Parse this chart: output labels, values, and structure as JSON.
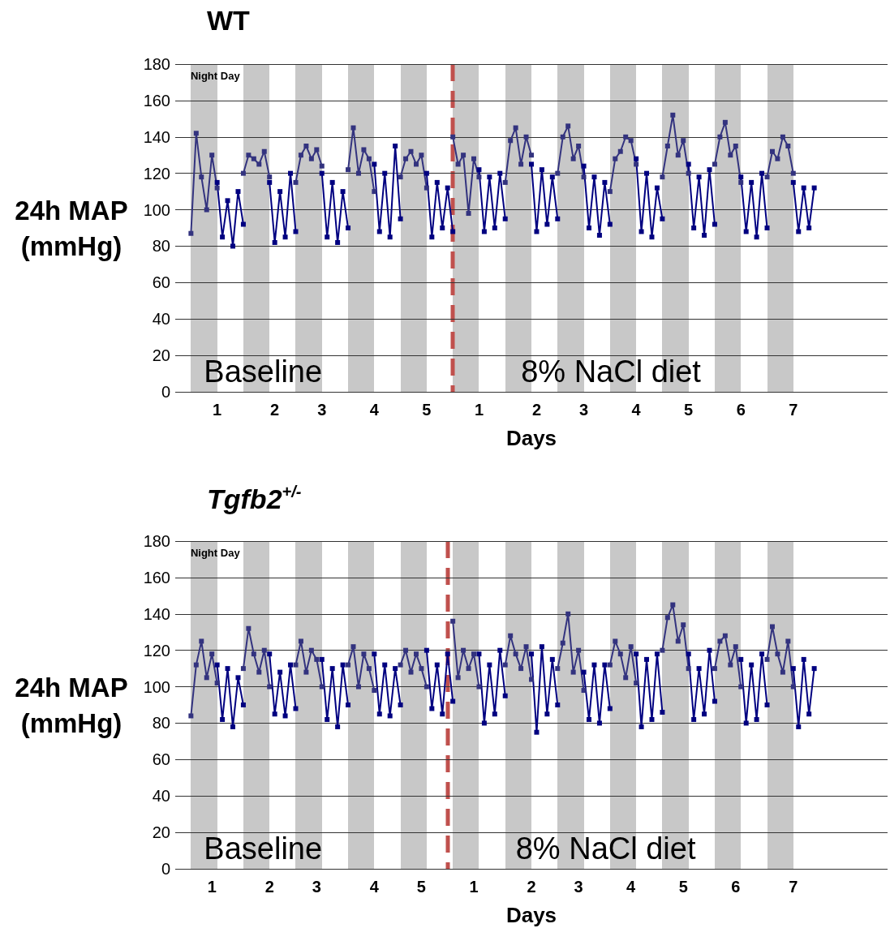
{
  "chart_data": [
    {
      "type": "line",
      "title": "WT",
      "xlabel": "Days",
      "ylabel": "24h MAP\n(mmHg)",
      "categories": [
        null,
        null,
        null,
        null,
        null,
        null,
        null,
        null,
        "1",
        null,
        null,
        null,
        null,
        null,
        null,
        null,
        null,
        null,
        null,
        "2",
        null,
        null,
        null,
        null,
        null,
        null,
        null,
        null,
        "3",
        null,
        null,
        null,
        null,
        null,
        null,
        null,
        null,
        null,
        "4",
        null,
        null,
        null,
        null,
        null,
        null,
        null,
        null,
        null,
        "5",
        null,
        null,
        null,
        null,
        null,
        null,
        null,
        null,
        null,
        "1",
        null,
        null,
        null,
        null,
        null,
        null,
        null,
        null,
        null,
        null,
        "2",
        null,
        null,
        null,
        null,
        null,
        null,
        null,
        null,
        "3",
        null,
        null,
        null,
        null,
        null,
        null,
        null,
        null,
        null,
        "4",
        null,
        null,
        null,
        null,
        null,
        null,
        null,
        null,
        null,
        "5",
        null,
        null,
        null,
        null,
        null,
        null,
        null,
        null,
        null,
        "6",
        null,
        null,
        null,
        null,
        null,
        null,
        null,
        null,
        null,
        "7",
        null,
        null,
        null,
        null,
        null,
        null,
        null,
        null,
        null,
        null,
        null,
        null,
        null,
        null,
        null,
        null,
        null,
        null
      ],
      "ylim": [
        0,
        180
      ],
      "yticks": [
        0,
        20,
        40,
        60,
        80,
        100,
        120,
        140,
        160,
        180
      ],
      "grid": "y",
      "marker": "square",
      "line_style": "solid",
      "series": [
        {
          "color": "#33337f",
          "values": [
            null,
            null,
            null,
            87,
            142,
            118,
            100,
            130,
            112,
            null,
            null,
            null,
            null,
            120,
            130,
            128,
            125,
            132,
            118,
            null,
            null,
            null,
            null,
            115,
            130,
            135,
            128,
            133,
            124,
            null,
            null,
            null,
            null,
            122,
            145,
            120,
            133,
            128,
            110,
            null,
            null,
            null,
            null,
            118,
            128,
            132,
            125,
            130,
            112,
            null,
            null,
            null,
            null,
            140,
            125,
            130,
            98,
            128,
            118,
            null,
            null,
            null,
            null,
            115,
            138,
            145,
            125,
            140,
            130,
            null,
            null,
            null,
            null,
            120,
            140,
            146,
            128,
            135,
            118,
            null,
            null,
            null,
            null,
            110,
            128,
            132,
            140,
            138,
            125,
            null,
            null,
            null,
            null,
            118,
            135,
            152,
            130,
            138,
            120,
            null,
            null,
            null,
            null,
            125,
            140,
            148,
            130,
            135,
            115,
            null,
            null,
            null,
            null,
            118,
            132,
            128,
            140,
            135,
            120,
            null,
            null,
            null,
            null,
            null,
            null,
            null,
            null,
            null,
            null,
            null,
            null,
            null,
            null,
            null,
            null,
            null,
            null
          ]
        },
        {
          "color": "#000080",
          "values": [
            null,
            null,
            null,
            null,
            null,
            null,
            null,
            null,
            115,
            85,
            105,
            80,
            110,
            92,
            null,
            null,
            null,
            null,
            115,
            82,
            110,
            85,
            120,
            88,
            null,
            null,
            null,
            null,
            120,
            85,
            115,
            82,
            110,
            90,
            null,
            null,
            null,
            null,
            125,
            88,
            120,
            85,
            135,
            95,
            null,
            null,
            null,
            null,
            120,
            85,
            115,
            90,
            112,
            88,
            null,
            null,
            null,
            null,
            122,
            88,
            118,
            90,
            120,
            95,
            null,
            null,
            null,
            null,
            125,
            88,
            122,
            92,
            118,
            95,
            null,
            null,
            null,
            null,
            124,
            90,
            118,
            86,
            115,
            92,
            null,
            null,
            null,
            null,
            128,
            88,
            120,
            85,
            112,
            95,
            null,
            null,
            null,
            null,
            125,
            90,
            118,
            86,
            122,
            92,
            null,
            null,
            null,
            null,
            118,
            88,
            115,
            85,
            120,
            90,
            null,
            null,
            null,
            null,
            115,
            88,
            112,
            90,
            112,
            null,
            null,
            null,
            null,
            null,
            null,
            null,
            null,
            null,
            null,
            null,
            null,
            null,
            null
          ]
        }
      ],
      "annotations": [
        "Night",
        "Day",
        "Baseline",
        "8% NaCl diet"
      ]
    },
    {
      "type": "line",
      "title": "Tgfb2$^{+/-}$",
      "xlabel": "Days",
      "ylabel": "24h MAP\n(mmHg)",
      "categories": [
        null,
        null,
        null,
        null,
        null,
        null,
        null,
        "1",
        null,
        null,
        null,
        null,
        null,
        null,
        null,
        null,
        null,
        null,
        "2",
        null,
        null,
        null,
        null,
        null,
        null,
        null,
        null,
        "3",
        null,
        null,
        null,
        null,
        null,
        null,
        null,
        null,
        null,
        null,
        "4",
        null,
        null,
        null,
        null,
        null,
        null,
        null,
        null,
        "5",
        null,
        null,
        null,
        null,
        null,
        null,
        null,
        null,
        null,
        "1",
        null,
        null,
        null,
        null,
        null,
        null,
        null,
        null,
        null,
        null,
        "2",
        null,
        null,
        null,
        null,
        null,
        null,
        null,
        null,
        "3",
        null,
        null,
        null,
        null,
        null,
        null,
        null,
        null,
        null,
        "4",
        null,
        null,
        null,
        null,
        null,
        null,
        null,
        null,
        null,
        "5",
        null,
        null,
        null,
        null,
        null,
        null,
        null,
        null,
        null,
        "6",
        null,
        null,
        null,
        null,
        null,
        null,
        null,
        null,
        null,
        null,
        "7",
        null,
        null,
        null,
        null,
        null,
        null,
        null,
        null,
        null,
        null,
        null,
        null,
        null,
        null,
        null,
        null,
        null,
        null
      ],
      "ylim": [
        0,
        180
      ],
      "yticks": [
        0,
        20,
        40,
        60,
        80,
        100,
        120,
        140,
        160,
        180
      ],
      "grid": "y",
      "marker": "square",
      "line_style": "solid",
      "series": [
        {
          "color": "#33337f",
          "values": [
            null,
            null,
            null,
            84,
            112,
            125,
            105,
            118,
            102,
            null,
            null,
            null,
            null,
            110,
            132,
            118,
            108,
            120,
            100,
            null,
            null,
            null,
            null,
            112,
            125,
            108,
            120,
            115,
            100,
            null,
            null,
            null,
            null,
            112,
            122,
            100,
            118,
            110,
            98,
            null,
            null,
            null,
            null,
            112,
            120,
            108,
            118,
            110,
            100,
            null,
            null,
            null,
            null,
            136,
            105,
            120,
            110,
            118,
            100,
            null,
            null,
            null,
            null,
            112,
            128,
            118,
            110,
            122,
            104,
            null,
            null,
            null,
            null,
            110,
            124,
            140,
            108,
            120,
            98,
            null,
            null,
            null,
            null,
            112,
            125,
            118,
            105,
            122,
            102,
            null,
            null,
            null,
            null,
            120,
            138,
            145,
            125,
            134,
            110,
            null,
            null,
            null,
            null,
            110,
            125,
            128,
            112,
            122,
            100,
            null,
            null,
            null,
            null,
            115,
            133,
            118,
            108,
            125,
            100,
            null,
            null,
            null,
            null,
            null,
            null,
            null,
            null,
            null,
            null,
            null,
            null,
            null,
            null,
            null,
            null,
            null,
            null
          ]
        },
        {
          "color": "#000080",
          "values": [
            null,
            null,
            null,
            null,
            null,
            null,
            null,
            null,
            112,
            82,
            110,
            78,
            105,
            90,
            null,
            null,
            null,
            null,
            118,
            85,
            108,
            84,
            112,
            88,
            null,
            null,
            null,
            null,
            115,
            82,
            110,
            78,
            112,
            90,
            null,
            null,
            null,
            null,
            118,
            85,
            112,
            84,
            110,
            90,
            null,
            null,
            null,
            null,
            120,
            88,
            112,
            85,
            118,
            92,
            null,
            null,
            null,
            null,
            118,
            80,
            112,
            85,
            120,
            95,
            null,
            null,
            null,
            null,
            118,
            75,
            122,
            85,
            115,
            90,
            null,
            null,
            null,
            null,
            108,
            82,
            112,
            80,
            112,
            88,
            null,
            null,
            null,
            null,
            118,
            78,
            115,
            82,
            118,
            86,
            null,
            null,
            null,
            null,
            118,
            82,
            110,
            85,
            120,
            92,
            null,
            null,
            null,
            null,
            115,
            80,
            112,
            82,
            118,
            90,
            null,
            null,
            null,
            null,
            110,
            78,
            115,
            85,
            110,
            null,
            null,
            null,
            null,
            null,
            null,
            null,
            null,
            null,
            null,
            null,
            null,
            null,
            null
          ]
        }
      ],
      "annotations": [
        "Night",
        "Day",
        "Baseline",
        "8% NaCl diet"
      ]
    }
  ]
}
